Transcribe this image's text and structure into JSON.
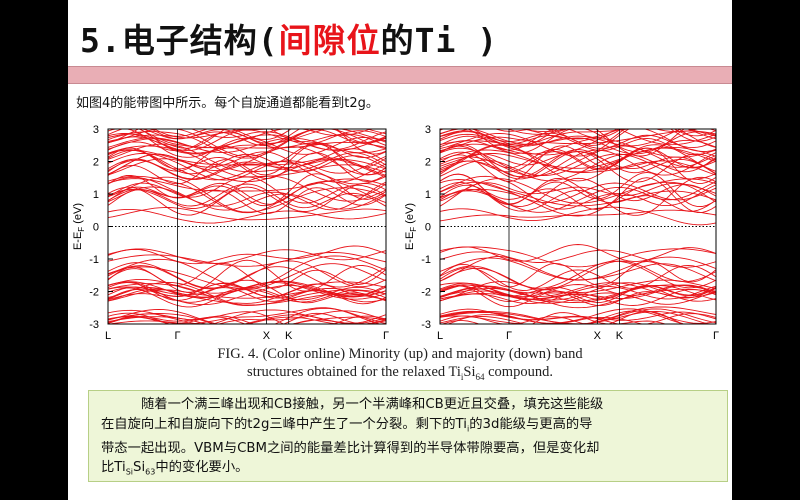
{
  "slide": {
    "title_prefix": "5.电子结构(",
    "title_highlight": "间隙位",
    "title_suffix": "的Ti )",
    "intro": "如图4的能带图中所示。每个自旋通道都能看到t2g。",
    "caption_line1": "FIG. 4. (Color online) Minority (up) and majority (down) band",
    "caption_line2_pre": "structures obtained for the relaxed Ti",
    "caption_line2_sub1": "i",
    "caption_line2_mid": "Si",
    "caption_line2_sub2": "64",
    "caption_line2_post": " compound.",
    "note_line1": "随着一个满三峰出现和CB接触，另一个半满峰和CB更近且交叠，填充这些能级",
    "note_line2": "在自旋向上和自旋向下的t2g三峰中产生了一个分裂。剩下的Ti",
    "note_line2_sub": "i",
    "note_line2_post": "的3d能级与更高的导",
    "note_line3": "带态一起出现。VBM与CBM之间的能量差比计算得到的半导体带隙要高，但是变化却",
    "note_line4_pre": "比Ti",
    "note_line4_sub1": "Si",
    "note_line4_mid": "Si",
    "note_line4_sub2": "63",
    "note_line4_post": "中的变化要小。",
    "colors": {
      "band": "#e8141a",
      "title_accent": "#e8141a",
      "header_band": "#e9aeb5",
      "note_bg": "#eef6d8"
    }
  },
  "chart_data": [
    {
      "type": "line",
      "title": "",
      "xlabel": "",
      "ylabel": "E-E_F (eV)",
      "ylim": [
        -3,
        3
      ],
      "yticks": [
        "3",
        "2",
        "1",
        "0",
        "-1",
        "-2",
        "-3"
      ],
      "xticks": [
        "L",
        "Γ",
        "X",
        "K",
        "Γ"
      ],
      "fermi_level": 0,
      "panel": "minority (up)"
    },
    {
      "type": "line",
      "title": "",
      "xlabel": "",
      "ylabel": "E-E_F (eV)",
      "ylim": [
        -3,
        3
      ],
      "yticks": [
        "3",
        "2",
        "1",
        "0",
        "-1",
        "-2",
        "-3"
      ],
      "xticks": [
        "L",
        "Γ",
        "X",
        "K",
        "Γ"
      ],
      "fermi_level": 0,
      "panel": "majority (down)"
    }
  ]
}
